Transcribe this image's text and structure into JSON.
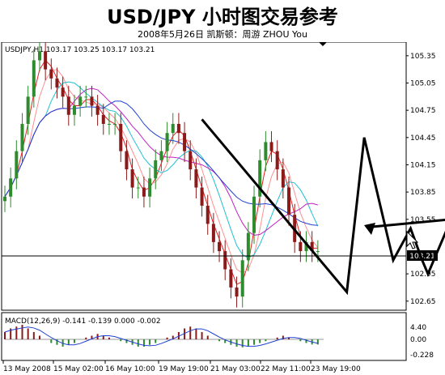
{
  "header": {
    "title": "USD/JPY 小时图交易参考",
    "subtitle": "2008年5月26日  凯斯顿：周游 ZHOU You"
  },
  "chart": {
    "info_label": "USDJPY,H1  103.17 103.25 103.17 103.21",
    "current_price_label": "103.21",
    "macd_label": "MACD(12,26,9) -0.141 -0.139 0.000 -0.002",
    "macd_ticks": [
      "4.40",
      "0.00",
      "-0.228"
    ],
    "price_ticks": [
      "105.35",
      "105.05",
      "104.75",
      "104.45",
      "104.15",
      "103.85",
      "103.55",
      "103.21",
      "102.95",
      "102.65"
    ],
    "time_labels": [
      "13 May 2008",
      "15 May 02:00",
      "16 May 10:00",
      "19 May 19:00",
      "21 May 03:00",
      "22 May 11:00",
      "23 May 19:00"
    ],
    "colors": {
      "bull": "#2e8b2e",
      "bear": "#8b1a1a",
      "ma_red": "#e02020",
      "ma_cyan": "#20c0d0",
      "ma_magenta": "#c020c0",
      "ma_blue": "#2040d0",
      "ma_pink": "#ff9090"
    }
  },
  "chart_data": {
    "type": "line",
    "title": "USD/JPY 小时图交易参考",
    "ylim": [
      102.55,
      105.5
    ],
    "y_ticks": [
      105.35,
      105.05,
      104.75,
      104.45,
      104.15,
      103.85,
      103.55,
      103.21,
      102.95,
      102.65
    ],
    "x_labels": [
      "13 May 2008",
      "15 May 02:00",
      "16 May 10:00",
      "19 May 19:00",
      "21 May 03:00",
      "22 May 11:00",
      "23 May 19:00"
    ],
    "close": [
      103.8,
      104.0,
      104.3,
      104.6,
      104.9,
      105.3,
      105.4,
      105.2,
      105.1,
      105.0,
      104.9,
      104.7,
      104.8,
      104.9,
      104.9,
      104.8,
      104.7,
      104.6,
      104.6,
      104.6,
      104.3,
      104.1,
      103.9,
      103.9,
      103.8,
      104.0,
      104.2,
      104.3,
      104.5,
      104.6,
      104.5,
      104.3,
      104.1,
      103.9,
      103.7,
      103.5,
      103.3,
      103.2,
      103.0,
      102.8,
      102.7,
      103.1,
      103.4,
      103.8,
      104.2,
      104.4,
      104.3,
      104.1,
      103.9,
      103.6,
      103.3,
      103.2,
      103.3,
      103.2,
      103.2
    ],
    "pattern_path": {
      "x_index": [
        34,
        59,
        62,
        67,
        70,
        72,
        73,
        75,
        77
      ],
      "y": [
        104.65,
        102.75,
        104.45,
        103.1,
        103.45,
        103.1,
        102.95,
        103.25,
        103.55
      ]
    },
    "macd_hist": [
      0.2,
      0.3,
      0.35,
      0.4,
      0.3,
      0.2,
      0.1,
      0.0,
      -0.1,
      -0.15,
      -0.2,
      -0.15,
      -0.1,
      0.0,
      0.05,
      0.1,
      0.15,
      0.1,
      0.05,
      0.0,
      -0.05,
      -0.1,
      -0.15,
      -0.2,
      -0.2,
      -0.15,
      -0.1,
      0.0,
      0.05,
      0.1,
      0.2,
      0.3,
      0.35,
      0.3,
      0.2,
      0.1,
      0.0,
      -0.05,
      -0.1,
      -0.15,
      -0.2,
      -0.22,
      -0.2,
      -0.15,
      -0.1,
      -0.05,
      0.0,
      0.05,
      0.1,
      0.05,
      0.0,
      -0.05,
      -0.1,
      -0.14,
      -0.14
    ]
  }
}
